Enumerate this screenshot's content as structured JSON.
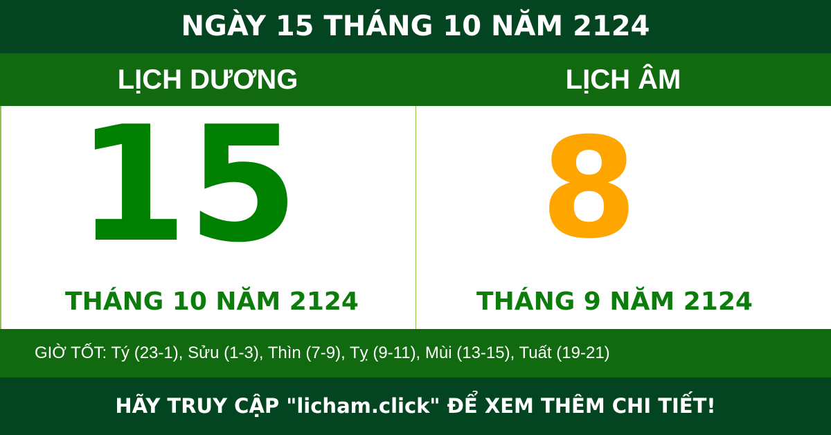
{
  "header": {
    "title": "NGÀY 15 THÁNG 10 NĂM 2124"
  },
  "solar": {
    "label": "LỊCH DƯƠNG",
    "day": "15",
    "month_year": "THÁNG 10 NĂM 2124"
  },
  "lunar": {
    "label": "LỊCH ÂM",
    "day": "8",
    "month_year": "THÁNG 9 NĂM 2124"
  },
  "good_hours": "GIỜ TỐT: Tý (23-1), Sửu (1-3), Thìn (7-9), Tỵ (9-11), Mùi (13-15), Tuất (19-21)",
  "footer": "HÃY TRUY CẬP \"licham.click\" ĐỂ XEM THÊM CHI TIẾT!",
  "colors": {
    "dark_green": "#034521",
    "green": "#116a10",
    "solar_day": "#008000",
    "lunar_day": "#ffa500"
  }
}
